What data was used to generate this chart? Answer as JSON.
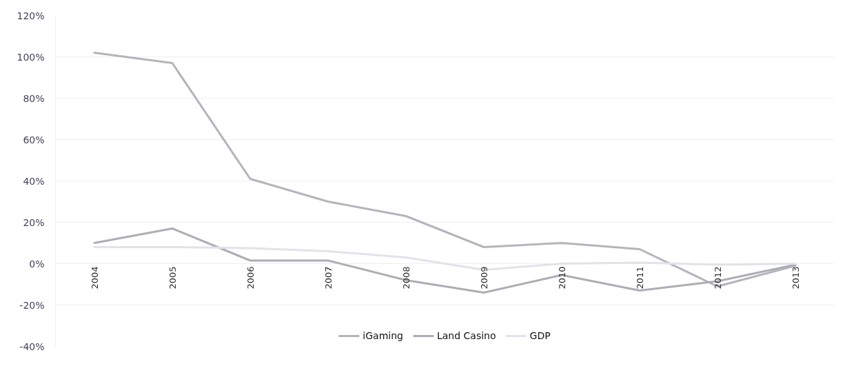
{
  "chart_data": {
    "type": "line",
    "categories": [
      "2004",
      "2005",
      "2006",
      "2007",
      "2008",
      "2009",
      "2010",
      "2011",
      "2012",
      "2013"
    ],
    "series": [
      {
        "name": "iGaming",
        "color": "#b4b4bc",
        "values": [
          102,
          97,
          41,
          30,
          23,
          8,
          10,
          7,
          -11,
          -1
        ]
      },
      {
        "name": "Land Casino",
        "color": "#adadb5",
        "values": [
          10,
          17,
          1.5,
          1.5,
          -8,
          -14,
          -5.5,
          -13,
          -8.5,
          -0.5
        ]
      },
      {
        "name": "GDP",
        "color": "#e2e2ea",
        "values": [
          8,
          8,
          7.5,
          6,
          3,
          -3,
          0,
          0.5,
          -0.5,
          0
        ]
      }
    ],
    "ylim": [
      -40,
      120
    ],
    "yticks": [
      {
        "value": -40,
        "label": "-40%"
      },
      {
        "value": -20,
        "label": "-20%"
      },
      {
        "value": 0,
        "label": "0%"
      },
      {
        "value": 20,
        "label": "20%"
      },
      {
        "value": 40,
        "label": "40%"
      },
      {
        "value": 60,
        "label": "60%"
      },
      {
        "value": 80,
        "label": "80%"
      },
      {
        "value": 100,
        "label": "100%"
      },
      {
        "value": 120,
        "label": "120%"
      }
    ],
    "grid": "y",
    "legend": "bottom",
    "line_style": "solid"
  }
}
